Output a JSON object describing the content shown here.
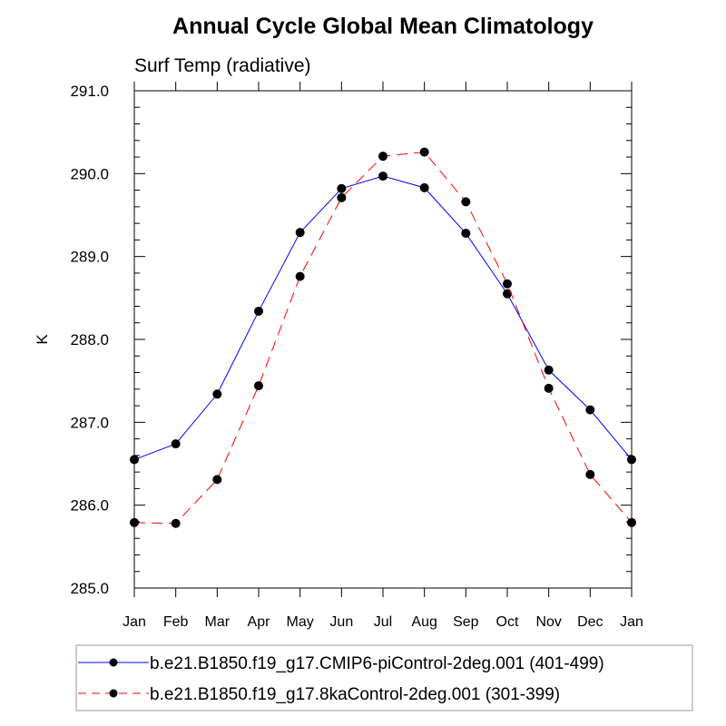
{
  "chart_data": {
    "type": "line",
    "title": "Annual Cycle Global Mean Climatology",
    "subtitle": "Surf Temp (radiative)",
    "xlabel": "",
    "ylabel": "K",
    "categories": [
      "Jan",
      "Feb",
      "Mar",
      "Apr",
      "May",
      "Jun",
      "Jul",
      "Aug",
      "Sep",
      "Oct",
      "Nov",
      "Dec",
      "Jan"
    ],
    "ylim": [
      285.0,
      291.0
    ],
    "yticks": [
      "285.0",
      "286.0",
      "287.0",
      "288.0",
      "289.0",
      "290.0",
      "291.0"
    ],
    "grid": false,
    "legend_placement": "bottom",
    "series": [
      {
        "name": "b.e21.B1850.f19_g17.CMIP6-piControl-2deg.001 (401-499)",
        "color": "#0000ff",
        "dash": "solid",
        "values": [
          286.55,
          286.74,
          287.34,
          288.34,
          289.29,
          289.82,
          289.97,
          289.83,
          289.28,
          288.55,
          287.63,
          287.15,
          286.55
        ]
      },
      {
        "name": "b.e21.B1850.f19_g17.8kaControl-2deg.001 (301-399)",
        "color": "#ff0000",
        "dash": "dashed",
        "values": [
          285.79,
          285.78,
          286.31,
          287.44,
          288.76,
          289.71,
          290.21,
          290.26,
          289.66,
          288.67,
          287.41,
          286.37,
          285.79
        ]
      }
    ]
  }
}
